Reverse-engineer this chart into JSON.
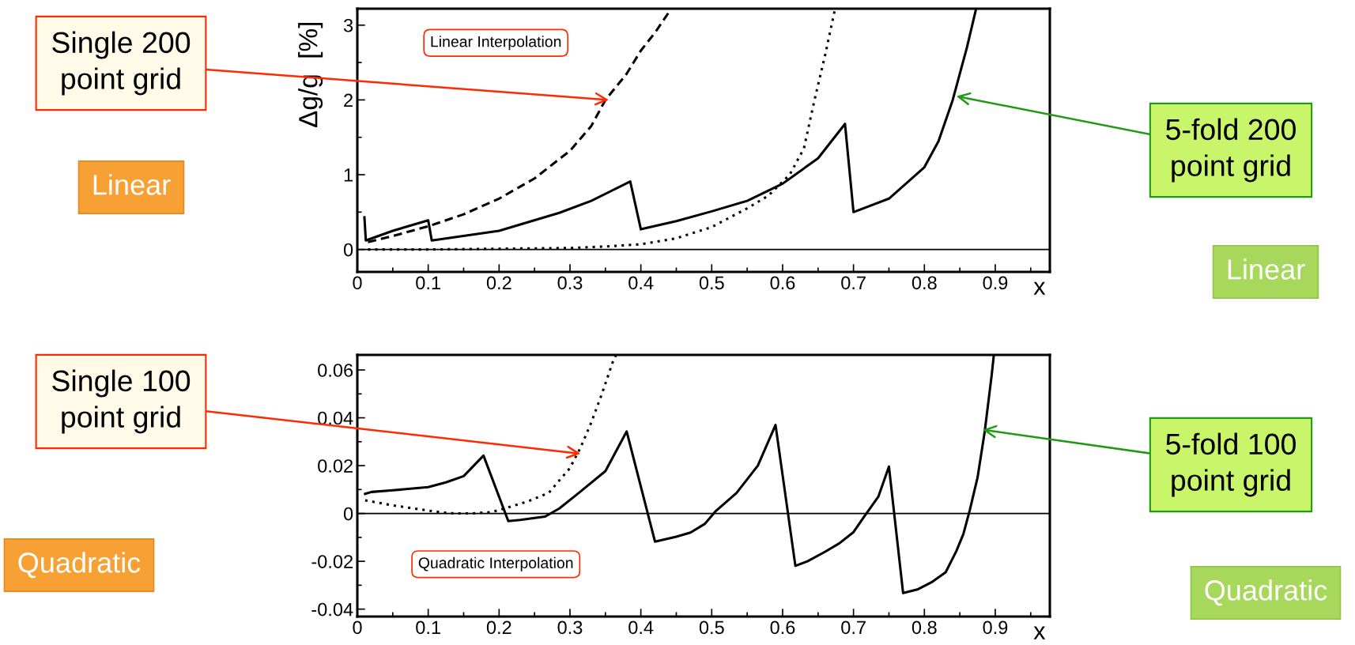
{
  "chart_data": [
    {
      "type": "line",
      "ylabel": "Δg/g  [%]",
      "xlabel": "x",
      "marker": "none",
      "grid": false,
      "legend": false,
      "xlim": [
        0,
        0.977
      ],
      "ylim": [
        -0.3,
        3.22
      ],
      "xticks": [
        0,
        {
          "value": 0.05,
          "label": null
        },
        0.1,
        {
          "value": 0.15,
          "label": null
        },
        0.2,
        {
          "value": 0.25,
          "label": null
        },
        0.3,
        {
          "value": 0.35,
          "label": null
        },
        0.4,
        {
          "value": 0.45,
          "label": null
        },
        0.5,
        {
          "value": 0.55,
          "label": null
        },
        0.6,
        {
          "value": 0.65,
          "label": null
        },
        0.7,
        {
          "value": 0.75,
          "label": null
        },
        0.8,
        {
          "value": 0.85,
          "label": null
        },
        0.9,
        {
          "value": 0.95,
          "label": null
        }
      ],
      "yticks": [
        0,
        {
          "value": 0.5,
          "label": null
        },
        1,
        {
          "value": 1.5,
          "label": null
        },
        2,
        {
          "value": 2.5,
          "label": null
        },
        3
      ],
      "ref_lines": [
        {
          "axis": "y",
          "value": 0,
          "label": null,
          "color": "#000000",
          "line_style": "solid"
        }
      ],
      "series": [
        {
          "color": "#000000",
          "line_style": "dashed",
          "x": [
            0.015,
            0.05,
            0.1,
            0.15,
            0.2,
            0.25,
            0.3,
            0.33,
            0.35,
            0.38,
            0.4,
            0.42,
            0.44
          ],
          "values": [
            0.1,
            0.18,
            0.31,
            0.47,
            0.68,
            0.95,
            1.32,
            1.65,
            2.0,
            2.35,
            2.66,
            2.9,
            3.18
          ]
        },
        {
          "color": "#000000",
          "line_style": "dotted",
          "x": [
            0.015,
            0.1,
            0.2,
            0.3,
            0.35,
            0.4,
            0.45,
            0.5,
            0.55,
            0.58,
            0.61,
            0.63,
            0.645,
            0.66,
            0.674
          ],
          "values": [
            0.0,
            0.0,
            0.01,
            0.02,
            0.04,
            0.07,
            0.15,
            0.3,
            0.55,
            0.72,
            1.0,
            1.35,
            2.0,
            2.6,
            3.22
          ]
        },
        {
          "color": "#000000",
          "line_style": "solid",
          "x": [
            0.01,
            0.012,
            0.05,
            0.1,
            0.105,
            0.2,
            0.285,
            0.33,
            0.385,
            0.4,
            0.45,
            0.5,
            0.55,
            0.6,
            0.65,
            0.688,
            0.7,
            0.75,
            0.8,
            0.82,
            0.84,
            0.86,
            0.873
          ],
          "values": [
            0.43,
            0.12,
            0.25,
            0.39,
            0.12,
            0.25,
            0.49,
            0.65,
            0.91,
            0.27,
            0.38,
            0.51,
            0.65,
            0.88,
            1.22,
            1.68,
            0.5,
            0.68,
            1.1,
            1.45,
            2.0,
            2.7,
            3.22
          ]
        }
      ],
      "annotations": [
        "Linear Interpolation",
        {
          "text": "Single 200\npoint grid",
          "x": 0.355,
          "y": 2.0
        },
        "Linear",
        {
          "text": "5-fold 200\npoint grid",
          "x": 0.845,
          "y": 2.05
        },
        "Linear"
      ]
    },
    {
      "type": "line",
      "xlabel": "x",
      "marker": "none",
      "grid": false,
      "legend": false,
      "xlim": [
        0,
        0.977
      ],
      "ylim": [
        -0.0431,
        0.0663
      ],
      "xticks": [
        0,
        {
          "value": 0.05,
          "label": null
        },
        0.1,
        {
          "value": 0.15,
          "label": null
        },
        0.2,
        {
          "value": 0.25,
          "label": null
        },
        0.3,
        {
          "value": 0.35,
          "label": null
        },
        0.4,
        {
          "value": 0.45,
          "label": null
        },
        0.5,
        {
          "value": 0.55,
          "label": null
        },
        0.6,
        {
          "value": 0.65,
          "label": null
        },
        0.7,
        {
          "value": 0.75,
          "label": null
        },
        0.8,
        {
          "value": 0.85,
          "label": null
        },
        0.9,
        {
          "value": 0.95,
          "label": null
        }
      ],
      "yticks": [
        -0.04,
        {
          "value": -0.03,
          "label": null
        },
        -0.02,
        {
          "value": -0.01,
          "label": null
        },
        0,
        {
          "value": 0.01,
          "label": null
        },
        0.02,
        {
          "value": 0.03,
          "label": null
        },
        0.04,
        {
          "value": 0.05,
          "label": null
        },
        0.06
      ],
      "ref_lines": [
        {
          "axis": "y",
          "value": 0,
          "label": null,
          "color": "#000000",
          "line_style": "solid"
        }
      ],
      "series": [
        {
          "color": "#000000",
          "line_style": "dotted",
          "x": [
            0.011,
            0.05,
            0.1,
            0.13,
            0.16,
            0.19,
            0.21,
            0.24,
            0.27,
            0.3,
            0.315,
            0.33,
            0.345,
            0.36,
            0.365
          ],
          "values": [
            0.0055,
            0.0034,
            0.0012,
            0.0001,
            0.0,
            0.0006,
            0.0023,
            0.005,
            0.0086,
            0.019,
            0.0276,
            0.038,
            0.05,
            0.063,
            0.0663
          ]
        },
        {
          "color": "#000000",
          "line_style": "solid",
          "x": [
            0.011,
            0.02,
            0.05,
            0.1,
            0.125,
            0.15,
            0.178,
            0.213,
            0.23,
            0.265,
            0.285,
            0.31,
            0.35,
            0.38,
            0.42,
            0.45,
            0.47,
            0.49,
            0.505,
            0.535,
            0.565,
            0.59,
            0.618,
            0.635,
            0.66,
            0.68,
            0.7,
            0.715,
            0.735,
            0.75,
            0.77,
            0.79,
            0.81,
            0.83,
            0.845,
            0.855,
            0.864,
            0.875,
            0.885,
            0.895,
            0.898
          ],
          "values": [
            0.0082,
            0.009,
            0.0097,
            0.011,
            0.013,
            0.0156,
            0.0242,
            -0.0032,
            -0.0027,
            -0.0013,
            0.0021,
            0.008,
            0.0177,
            0.0343,
            -0.0118,
            -0.0097,
            -0.008,
            -0.0044,
            0.0008,
            0.0086,
            0.02,
            0.037,
            -0.0219,
            -0.02,
            -0.016,
            -0.0125,
            -0.0078,
            -0.0013,
            0.007,
            0.0196,
            -0.0333,
            -0.0318,
            -0.0288,
            -0.0246,
            -0.0158,
            -0.0086,
            0.0013,
            0.015,
            0.034,
            0.058,
            0.0663
          ]
        }
      ],
      "annotations": [
        "Quadratic Interpolation",
        {
          "text": "Single 100\npoint grid",
          "x": 0.315,
          "y": 0.025
        },
        "Quadratic",
        {
          "text": "5-fold 100\npoint grid",
          "x": 0.882,
          "y": 0.035
        },
        "Quadratic"
      ]
    }
  ]
}
